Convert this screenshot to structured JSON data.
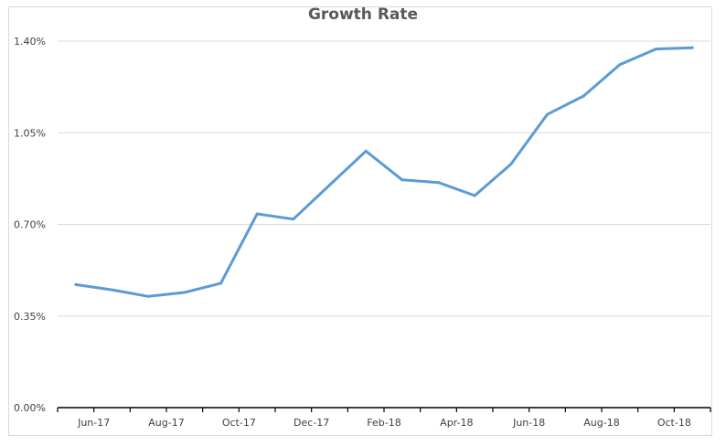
{
  "chart_data": {
    "type": "line",
    "title": "Growth Rate",
    "xlabel": "",
    "ylabel": "",
    "x": [
      "Jun-17",
      "Jul-17",
      "Aug-17",
      "Sep-17",
      "Oct-17",
      "Nov-17",
      "Dec-17",
      "Jan-18",
      "Feb-18",
      "Mar-18",
      "Apr-18",
      "May-18",
      "Jun-18",
      "Jul-18",
      "Aug-18",
      "Sep-18",
      "Oct-18",
      "Nov-18"
    ],
    "x_tick_labels": [
      "Jun-17",
      "Aug-17",
      "Oct-17",
      "Dec-17",
      "Feb-18",
      "Apr-18",
      "Jun-18",
      "Aug-18",
      "Oct-18"
    ],
    "series": [
      {
        "values": [
          0.0047,
          0.0045,
          0.00425,
          0.0044,
          0.00475,
          0.0074,
          0.0072,
          0.0085,
          0.0098,
          0.0087,
          0.0086,
          0.0081,
          0.0093,
          0.0112,
          0.0119,
          0.0131,
          0.0137,
          0.01375
        ],
        "color": "#5b9bd5"
      }
    ],
    "ylim": [
      0,
      0.014
    ],
    "y_tick_labels": [
      "0.00%",
      "0.35%",
      "0.70%",
      "1.05%",
      "1.40%"
    ],
    "y_ticks": [
      0,
      0.0035,
      0.007,
      0.0105,
      0.014
    ],
    "grid": true,
    "legend": "none"
  }
}
